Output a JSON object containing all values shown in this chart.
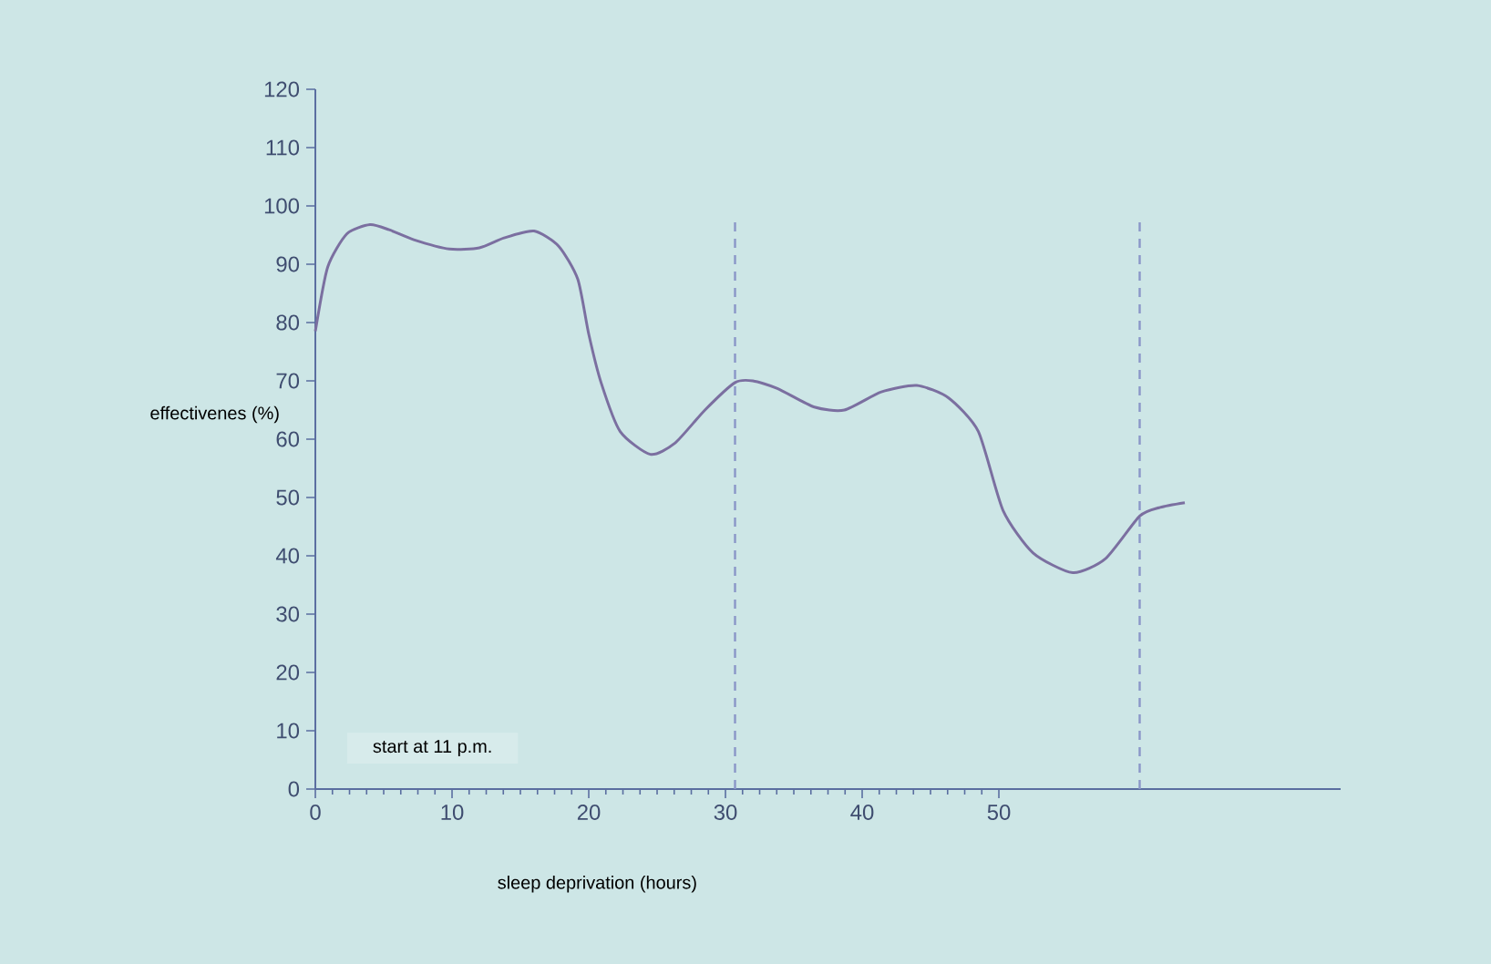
{
  "chart_data": {
    "type": "line",
    "xlabel": "sleep deprivation (hours)",
    "ylabel": "effectivenes (%)",
    "annotations": [
      "start at 11 p.m."
    ],
    "x": [
      0,
      0.9,
      2.3,
      4.0,
      5.4,
      7.2,
      9.8,
      12.0,
      13.8,
      16.0,
      17.8,
      19.2,
      20.0,
      20.9,
      22.3,
      24.5,
      26.3,
      28.5,
      30.7,
      32.0,
      33.8,
      36.5,
      38.7,
      41.4,
      44.0,
      46.3,
      48.5,
      50.3,
      52.5,
      55.4,
      57.8,
      60.3,
      61.8,
      63.6
    ],
    "series": [
      {
        "color": "#7b6fa0",
        "values": [
          78.5,
          89.5,
          95.2,
          96.8,
          95.9,
          94.2,
          92.6,
          92.8,
          94.5,
          95.7,
          93.1,
          87.4,
          78.0,
          69.7,
          61.3,
          57.4,
          59.3,
          65.0,
          69.7,
          70.0,
          68.7,
          65.5,
          65.0,
          68.1,
          69.2,
          67.1,
          61.3,
          47.8,
          40.5,
          37.1,
          39.5,
          46.8,
          48.3,
          49.1
        ]
      }
    ],
    "xlim": [
      0,
      75
    ],
    "xticks": [
      0,
      10,
      20,
      30,
      40,
      50
    ],
    "ylim": [
      0,
      120
    ],
    "yticks": [
      0,
      10,
      20,
      30,
      40,
      50,
      60,
      70,
      80,
      90,
      100,
      110,
      120
    ],
    "ref_lines": [
      {
        "axis": "x",
        "value": 30.7,
        "color": "#8a96c8",
        "line_style": "dashed"
      },
      {
        "axis": "x",
        "value": 60.3,
        "color": "#8a96c8",
        "line_style": "dashed"
      }
    ],
    "grid": false,
    "marker": "none",
    "line_style": "solid"
  }
}
